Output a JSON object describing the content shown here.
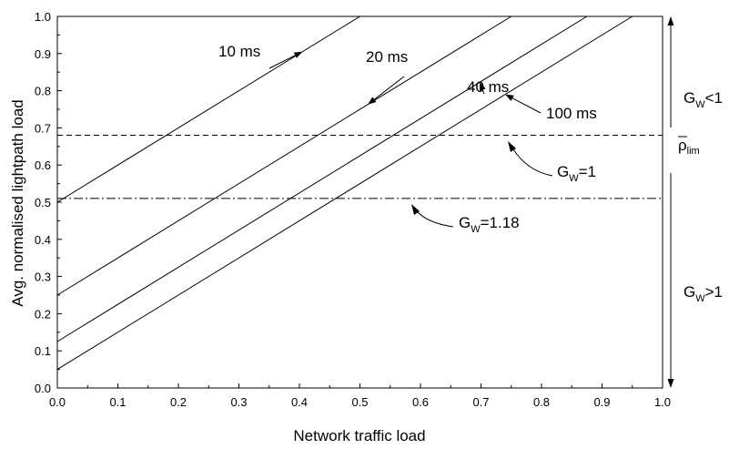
{
  "chart_data": {
    "type": "line",
    "xlabel": "Network traffic load",
    "ylabel": "Avg. normalised lightpath load",
    "xlim": [
      0.0,
      1.0
    ],
    "ylim": [
      0.0,
      1.0
    ],
    "xticks": [
      "0.0",
      "0.1",
      "0.2",
      "0.3",
      "0.4",
      "0.5",
      "0.6",
      "0.7",
      "0.8",
      "0.9",
      "1.0"
    ],
    "yticks": [
      "0.0",
      "0.1",
      "0.2",
      "0.3",
      "0.4",
      "0.5",
      "0.6",
      "0.7",
      "0.8",
      "0.9",
      "1.0"
    ],
    "grid": false,
    "series": [
      {
        "name": "10 ms",
        "x": [
          0.0,
          0.5
        ],
        "y": [
          0.5,
          1.0
        ]
      },
      {
        "name": "20 ms",
        "x": [
          0.0,
          0.75
        ],
        "y": [
          0.25,
          1.0
        ]
      },
      {
        "name": "40 ms",
        "x": [
          0.0,
          0.875
        ],
        "y": [
          0.125,
          1.0
        ]
      },
      {
        "name": "100 ms",
        "x": [
          0.0,
          0.95
        ],
        "y": [
          0.05,
          1.0
        ]
      }
    ],
    "reference_lines": [
      {
        "label_main": "G",
        "label_sub": "W",
        "label_tail": "=1",
        "y": 0.68,
        "style": "dashed"
      },
      {
        "label_main": "G",
        "label_sub": "W",
        "label_tail": "=1.18",
        "y": 0.51,
        "style": "dashdot"
      }
    ],
    "right_annotations": {
      "upper": {
        "main": "G",
        "sub": "W",
        "tail": "<1"
      },
      "limit": {
        "main": "ρ",
        "sub": "lim"
      },
      "lower": {
        "main": "G",
        "sub": "W",
        "tail": ">1"
      }
    }
  }
}
